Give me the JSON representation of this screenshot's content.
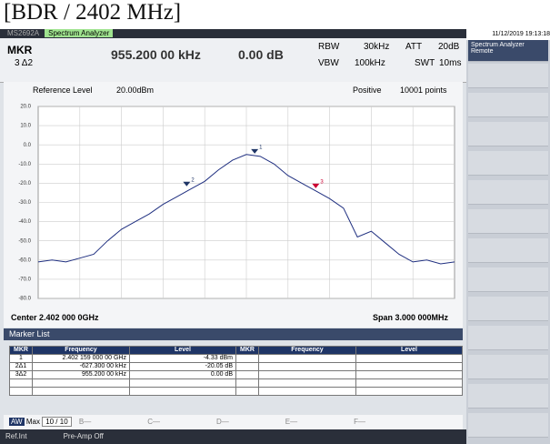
{
  "title": "[BDR / 2402 MHz]",
  "window": {
    "brand": "MS2692A",
    "app": "Spectrum Analyzer"
  },
  "settings": {
    "mkr": "MKR",
    "mkr_sel": "3 Δ2",
    "mkr_value": "955.200 00 kHz",
    "mkr_level": "0.00 dB",
    "rbw_label": "RBW",
    "rbw": "30kHz",
    "vbw_label": "VBW",
    "vbw": "100kHz",
    "att_label": "ATT",
    "att": "20dB",
    "swt_label": "SWT",
    "swt": "10ms"
  },
  "plot": {
    "ref_label": "Reference Level",
    "ref": "20.00dBm",
    "detector": "Positive",
    "points": "10001 points",
    "ylim": [
      20,
      -80
    ],
    "yticks": [
      {
        "value": 20,
        "label": "20.0"
      },
      {
        "value": 10,
        "label": "10.0"
      },
      {
        "value": 0,
        "label": "0.0"
      },
      {
        "value": -10,
        "label": "-10.0"
      },
      {
        "value": -20,
        "label": "-20.0"
      },
      {
        "value": -30,
        "label": "-30.0"
      },
      {
        "value": -40,
        "label": "-40.0"
      },
      {
        "value": -50,
        "label": "-50.0"
      },
      {
        "value": -60,
        "label": "-60.0"
      },
      {
        "value": -70,
        "label": "-70.0"
      },
      {
        "value": -80,
        "label": "-80.0"
      }
    ],
    "trace": [
      -61,
      -60,
      -61,
      -59,
      -57,
      -50,
      -44,
      -40,
      -36,
      -31,
      -27,
      -23,
      -19,
      -13,
      -8,
      -5,
      -6,
      -10,
      -16,
      -20,
      -24,
      -28,
      -33,
      -48,
      -45,
      -51,
      -57,
      -61,
      -60,
      -62,
      -61
    ],
    "marker_labels": [
      "1",
      "2",
      "3"
    ],
    "center": "Center 2.402 000 0GHz",
    "span": "Span 3.000 000MHz"
  },
  "marker_list": {
    "title": "Marker List",
    "headers": [
      "MKR",
      "Frequency",
      "Level",
      "MKR",
      "Frequency",
      "Level"
    ],
    "rows": [
      [
        "1",
        "2.402 159 000 00 GHz",
        "-4.33 dBm"
      ],
      [
        "2Δ1",
        "-627.300 00 kHz",
        "-20.05 dB"
      ],
      [
        "3Δ2",
        "955.200 00 kHz",
        "0.00 dB"
      ]
    ]
  },
  "trace_bar": {
    "trace": "AW",
    "mode": "Max",
    "count": "10 / 10",
    "others": [
      "B—",
      "C—",
      "D—",
      "E—",
      "F—"
    ]
  },
  "footer": {
    "ref": "Ref.Int",
    "preamp": "Pre-Amp Off"
  },
  "side": {
    "datetime": "11/12/2019 19:13:18",
    "app": "Spectrum Analyzer",
    "status": "Remote"
  }
}
